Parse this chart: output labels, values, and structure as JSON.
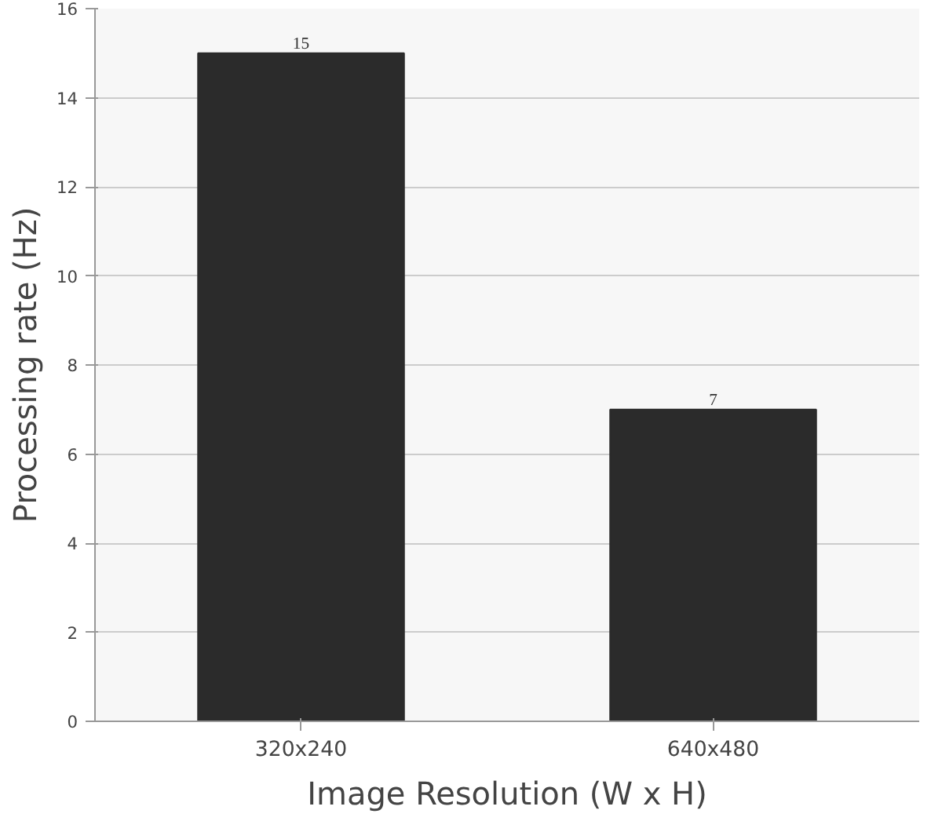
{
  "chart_data": {
    "type": "bar",
    "xlabel": "Image Resolution (W x H)",
    "ylabel": "Processing rate (Hz)",
    "categories": [
      "320x240",
      "640x480"
    ],
    "values": [
      15,
      7
    ],
    "color": "#2b2b2b",
    "ylim": [
      0,
      16
    ],
    "yticks": [
      0,
      2,
      4,
      6,
      8,
      10,
      12,
      14,
      16
    ],
    "grid": "y",
    "data_labels": true
  }
}
